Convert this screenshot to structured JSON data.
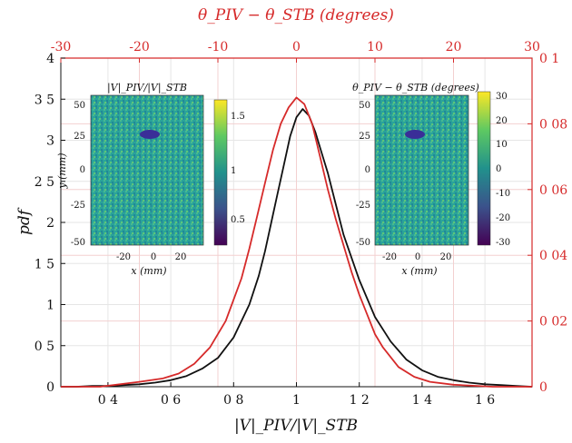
{
  "chart_data": {
    "type": "line",
    "xlabel": "|V|_PIV/|V|_STB",
    "ylabel": "pdf",
    "top_xlabel": "θ_PIV − θ_STB (degrees)",
    "xlim": [
      0.25,
      1.75
    ],
    "ylim": [
      0,
      4
    ],
    "top_xlim": [
      -30,
      30
    ],
    "right_ylim": [
      0,
      0.1
    ],
    "x_ticks": [
      "0 4",
      "0 6",
      "0 8",
      "1",
      "1 2",
      "1 4",
      "1 6"
    ],
    "y_ticks": [
      "0",
      "0 5",
      "1",
      "1 5",
      "2",
      "2 5",
      "3",
      "3 5",
      "4"
    ],
    "top_ticks": [
      "-30",
      "-20",
      "-10",
      "0",
      "10",
      "20",
      "30"
    ],
    "right_ticks": [
      "0",
      "0 02",
      "0 04",
      "0 06",
      "0 08",
      "0 1"
    ],
    "grid": true,
    "colors": {
      "black_series": "#111111",
      "red_series": "#d62a2a"
    },
    "series": [
      {
        "axis": "bottom-left",
        "color": "#111111",
        "x": [
          0.25,
          0.3,
          0.35,
          0.4,
          0.45,
          0.5,
          0.55,
          0.6,
          0.65,
          0.7,
          0.75,
          0.8,
          0.85,
          0.88,
          0.9,
          0.92,
          0.94,
          0.96,
          0.98,
          1.0,
          1.02,
          1.04,
          1.06,
          1.08,
          1.1,
          1.12,
          1.15,
          1.2,
          1.25,
          1.3,
          1.35,
          1.4,
          1.45,
          1.5,
          1.55,
          1.6,
          1.65,
          1.7,
          1.75
        ],
        "values": [
          0.0,
          0.0,
          0.01,
          0.01,
          0.02,
          0.03,
          0.05,
          0.08,
          0.13,
          0.22,
          0.35,
          0.6,
          1.0,
          1.35,
          1.65,
          2.0,
          2.35,
          2.7,
          3.05,
          3.28,
          3.38,
          3.3,
          3.1,
          2.85,
          2.6,
          2.3,
          1.85,
          1.3,
          0.85,
          0.55,
          0.33,
          0.2,
          0.12,
          0.08,
          0.05,
          0.03,
          0.02,
          0.01,
          0.0
        ]
      },
      {
        "axis": "top-right",
        "color": "#d62a2a",
        "x": [
          -30,
          -25,
          -20,
          -17,
          -15,
          -13,
          -11,
          -9,
          -7,
          -6,
          -5,
          -4,
          -3,
          -2,
          -1,
          0,
          1,
          2,
          3,
          4,
          5,
          6,
          7,
          8,
          9,
          10,
          11,
          12,
          13,
          15,
          17,
          20,
          25,
          30
        ],
        "values": [
          0.0,
          0.0,
          0.0015,
          0.0025,
          0.004,
          0.007,
          0.012,
          0.02,
          0.033,
          0.042,
          0.052,
          0.062,
          0.072,
          0.08,
          0.085,
          0.088,
          0.086,
          0.08,
          0.07,
          0.06,
          0.051,
          0.043,
          0.035,
          0.028,
          0.022,
          0.016,
          0.012,
          0.009,
          0.006,
          0.003,
          0.0015,
          0.0006,
          0.0,
          0.0
        ]
      }
    ],
    "insets": [
      {
        "title": "|V|_PIV/|V|_STB",
        "xlabel": "x (mm)",
        "ylabel": "y (mm)",
        "x_ticks": [
          "-20",
          "0",
          "20"
        ],
        "y_ticks": [
          "50",
          "25",
          "0",
          "-25",
          "-50"
        ],
        "colorbar_ticks": [
          "1.5",
          "1",
          "0.5"
        ]
      },
      {
        "title": "θ_PIV − θ_STB (degrees)",
        "xlabel": "x (mm)",
        "ylabel": "",
        "x_ticks": [
          "-20",
          "0",
          "20"
        ],
        "y_ticks": [
          "50",
          "25",
          "0",
          "-25",
          "-50"
        ],
        "colorbar_ticks": [
          "30",
          "20",
          "10",
          "0",
          "-10",
          "-20",
          "-30"
        ]
      }
    ]
  }
}
